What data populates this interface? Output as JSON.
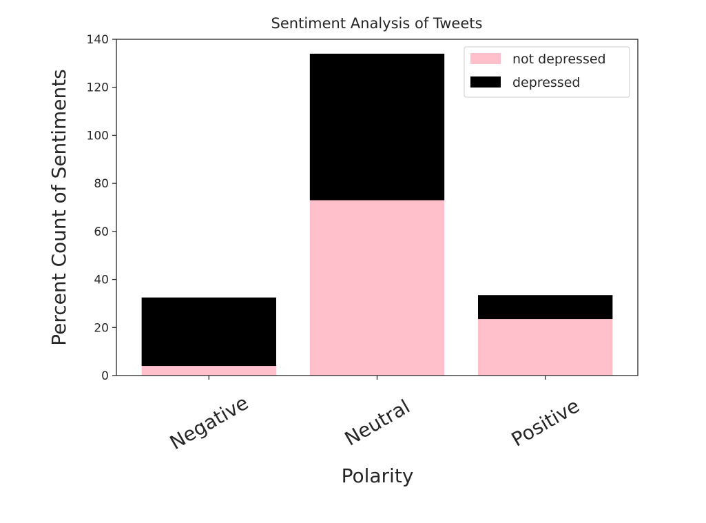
{
  "chart_data": {
    "type": "bar",
    "stacked": true,
    "title": "Sentiment Analysis of  Tweets",
    "xlabel": "Polarity",
    "ylabel": "Percent Count of Sentiments",
    "categories": [
      "Negative",
      "Neutral",
      "Positive"
    ],
    "series": [
      {
        "name": "not depressed",
        "values": [
          4,
          73,
          23.5
        ],
        "color": "#ffc0cb"
      },
      {
        "name": "depressed",
        "values": [
          28.5,
          61,
          10
        ],
        "color": "#000000"
      }
    ],
    "ylim": [
      0,
      140
    ],
    "yticks": [
      0,
      20,
      40,
      60,
      80,
      100,
      120,
      140
    ],
    "grid": false,
    "legend_position": "top-right"
  }
}
